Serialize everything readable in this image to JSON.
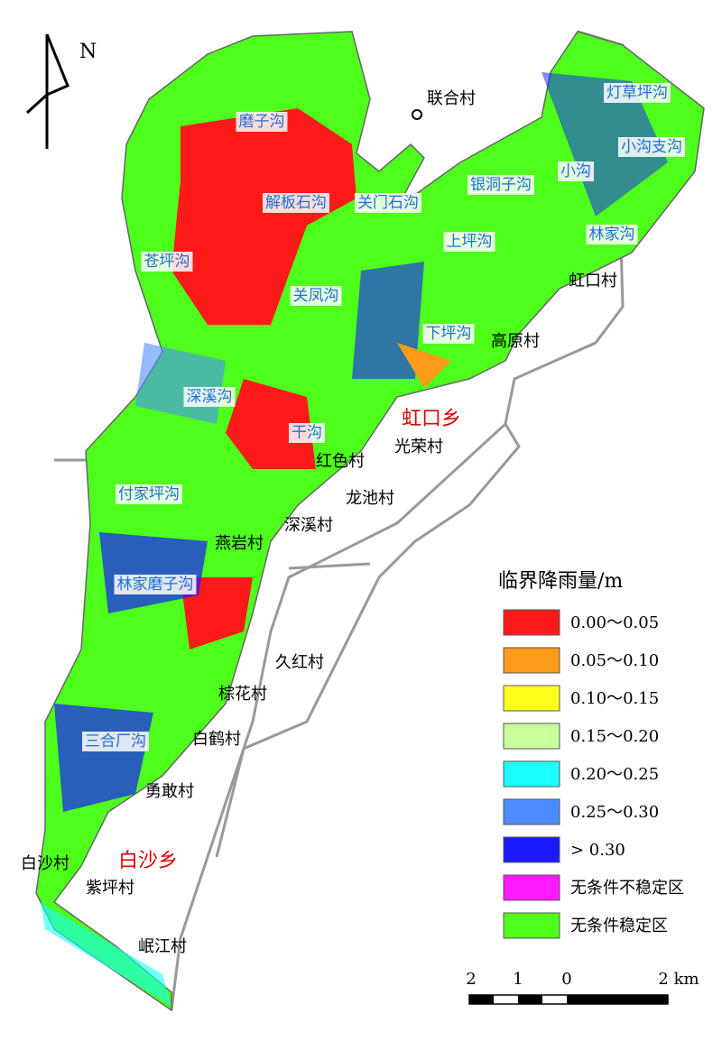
{
  "north": "N",
  "gullies": [
    "磨子沟",
    "解板石沟",
    "关门石沟",
    "苍坪沟",
    "关凤沟",
    "深溪沟",
    "干沟",
    "付家坪沟",
    "林家磨子沟",
    "三合厂沟",
    "灯草坪沟",
    "小沟支沟",
    "小沟",
    "银洞子沟",
    "上坪沟",
    "林家沟",
    "下坪沟"
  ],
  "villages": [
    "联合村",
    "虹口村",
    "高原村",
    "光荣村",
    "红色村",
    "龙池村",
    "深溪村",
    "燕岩村",
    "久红村",
    "棕花村",
    "白鹤村",
    "勇敢村",
    "白沙村",
    "紫坪村",
    "岷江村"
  ],
  "towns": [
    "虹口乡",
    "白沙乡"
  ],
  "legend": {
    "title": "临界降雨量/m",
    "items": [
      {
        "label": "0.00～0.05",
        "color": "#ff1a1a"
      },
      {
        "label": "0.05～0.10",
        "color": "#ff9a1a"
      },
      {
        "label": "0.10～0.15",
        "color": "#ffff1a"
      },
      {
        "label": "0.15～0.20",
        "color": "#c8ff9a"
      },
      {
        "label": "0.20～0.25",
        "color": "#1affff"
      },
      {
        "label": "0.25～0.30",
        "color": "#4d8cff"
      },
      {
        "label": "> 0.30",
        "color": "#1a1aff"
      },
      {
        "label": "无条件不稳定区",
        "color": "#ff1aff"
      },
      {
        "label": "无条件稳定区",
        "color": "#4dff1a"
      }
    ]
  },
  "scale": [
    "2",
    "1",
    "0",
    "2 km"
  ]
}
